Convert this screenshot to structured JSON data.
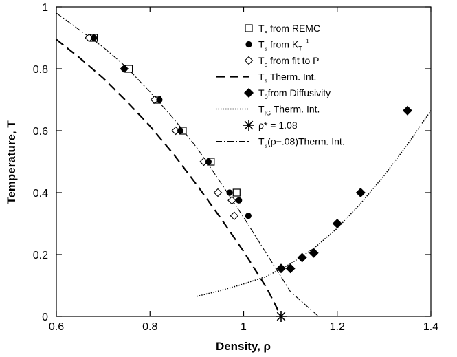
{
  "chart_data": {
    "type": "scatter",
    "xlabel": "Density, ρ",
    "ylabel": "Temperature, T",
    "xlim": [
      0.6,
      1.4
    ],
    "ylim": [
      0,
      1
    ],
    "x_ticks": [
      "0.6",
      "0.8",
      "1",
      "1.2",
      "1.4"
    ],
    "y_ticks": [
      "0",
      "0.2",
      "0.4",
      "0.6",
      "0.8",
      "1"
    ],
    "x_tick_values": [
      0.6,
      0.8,
      1.0,
      1.2,
      1.4
    ],
    "y_tick_values": [
      0,
      0.2,
      0.4,
      0.6,
      0.8,
      1.0
    ],
    "grid": false,
    "legend_position": "top-right",
    "series": [
      {
        "name": "T_s from REMC",
        "legend": {
          "main": "T",
          "sub": "s",
          "rest": " from REMC"
        },
        "marker": "square-open",
        "points": [
          [
            0.68,
            0.9
          ],
          [
            0.755,
            0.8
          ],
          [
            0.815,
            0.7
          ],
          [
            0.87,
            0.6
          ],
          [
            0.93,
            0.5
          ],
          [
            0.985,
            0.4
          ]
        ]
      },
      {
        "name": "T_s from K_T^-1",
        "legend": {
          "main": "T",
          "sub": "s",
          "rest": " from K",
          "rest_sub": "T",
          "rest_sup": "−1"
        },
        "marker": "circle-filled",
        "points": [
          [
            0.68,
            0.9
          ],
          [
            0.745,
            0.8
          ],
          [
            0.82,
            0.7
          ],
          [
            0.865,
            0.6
          ],
          [
            0.925,
            0.5
          ],
          [
            0.97,
            0.4
          ],
          [
            0.99,
            0.375
          ],
          [
            1.01,
            0.325
          ]
        ]
      },
      {
        "name": "T_s from fit to P",
        "legend": {
          "main": "T",
          "sub": "s",
          "rest": " from fit to P"
        },
        "marker": "diamond-open",
        "points": [
          [
            0.67,
            0.9
          ],
          [
            0.745,
            0.8
          ],
          [
            0.81,
            0.7
          ],
          [
            0.855,
            0.6
          ],
          [
            0.915,
            0.5
          ],
          [
            0.945,
            0.4
          ],
          [
            0.975,
            0.375
          ],
          [
            0.98,
            0.325
          ]
        ]
      },
      {
        "name": "T_s Therm. Int.",
        "legend": {
          "main": "T",
          "sub": "s",
          "rest": " Therm. Int."
        },
        "line": "long-dash",
        "points": [
          [
            0.6,
            0.895
          ],
          [
            0.65,
            0.835
          ],
          [
            0.7,
            0.77
          ],
          [
            0.75,
            0.695
          ],
          [
            0.8,
            0.615
          ],
          [
            0.85,
            0.525
          ],
          [
            0.9,
            0.425
          ],
          [
            0.95,
            0.32
          ],
          [
            1.0,
            0.21
          ],
          [
            1.05,
            0.09
          ],
          [
            1.08,
            0.0
          ]
        ]
      },
      {
        "name": "T_0 from Diffusivity",
        "legend": {
          "main": "T",
          "sub": "0",
          "rest": "from Diffusivity"
        },
        "marker": "diamond-filled",
        "points": [
          [
            1.08,
            0.155
          ],
          [
            1.1,
            0.155
          ],
          [
            1.125,
            0.19
          ],
          [
            1.15,
            0.205
          ],
          [
            1.2,
            0.3
          ],
          [
            1.25,
            0.4
          ],
          [
            1.35,
            0.665
          ]
        ]
      },
      {
        "name": "T_IG Therm. Int.",
        "legend": {
          "main": "T",
          "sub": "IG",
          "rest": " Therm. Int."
        },
        "line": "dotted",
        "points": [
          [
            0.9,
            0.065
          ],
          [
            0.95,
            0.083
          ],
          [
            1.0,
            0.105
          ],
          [
            1.05,
            0.13
          ],
          [
            1.1,
            0.17
          ],
          [
            1.15,
            0.22
          ],
          [
            1.2,
            0.285
          ],
          [
            1.25,
            0.365
          ],
          [
            1.3,
            0.455
          ],
          [
            1.35,
            0.555
          ],
          [
            1.4,
            0.665
          ]
        ]
      },
      {
        "name": "ρ* = 1.08",
        "legend": {
          "main": "ρ* = 1.08"
        },
        "marker": "asterisk",
        "points": [
          [
            1.08,
            0.0
          ]
        ]
      },
      {
        "name": "T_s(ρ−.08)Therm. Int.",
        "legend": {
          "main": "T",
          "sub": "s",
          "rest": "(ρ−.08)Therm. Int."
        },
        "line": "dash-dot",
        "points": [
          [
            0.6,
            0.98
          ],
          [
            0.65,
            0.925
          ],
          [
            0.7,
            0.87
          ],
          [
            0.75,
            0.805
          ],
          [
            0.8,
            0.725
          ],
          [
            0.85,
            0.64
          ],
          [
            0.9,
            0.545
          ],
          [
            0.95,
            0.435
          ],
          [
            1.0,
            0.32
          ],
          [
            1.05,
            0.2
          ],
          [
            1.1,
            0.08
          ],
          [
            1.16,
            0.0
          ]
        ]
      }
    ]
  }
}
